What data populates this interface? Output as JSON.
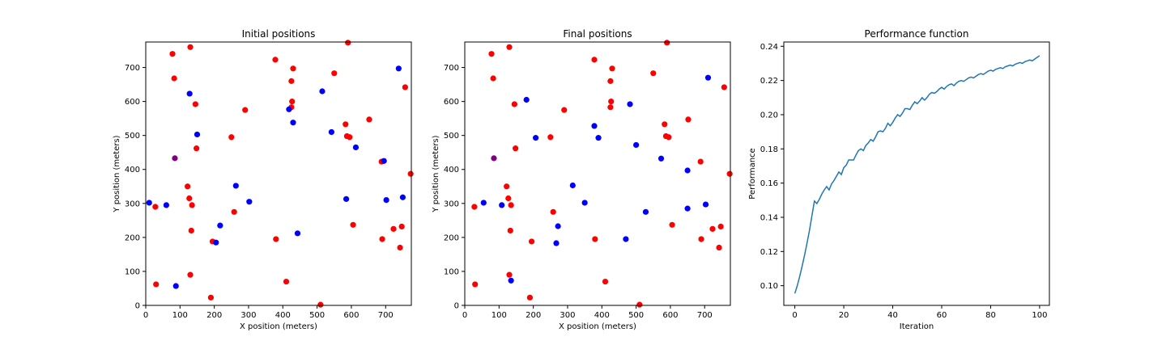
{
  "chart_data": [
    {
      "type": "scatter",
      "title": "Initial positions",
      "xlabel": "X position (meters)",
      "ylabel": "Y position (meters)",
      "xlim": [
        0,
        775
      ],
      "ylim": [
        0,
        775
      ],
      "xticks": [
        0,
        100,
        200,
        300,
        400,
        500,
        600,
        700
      ],
      "yticks": [
        0,
        100,
        200,
        300,
        400,
        500,
        600,
        700
      ],
      "colors": {
        "red": "#ff0000",
        "blue": "#0000ff",
        "purple": "#800080"
      },
      "points": {
        "red": [
          [
            78,
            740
          ],
          [
            83,
            668
          ],
          [
            130,
            760
          ],
          [
            145,
            592
          ],
          [
            148,
            462
          ],
          [
            122,
            350
          ],
          [
            127,
            315
          ],
          [
            135,
            295
          ],
          [
            133,
            220
          ],
          [
            130,
            90
          ],
          [
            28,
            290
          ],
          [
            30,
            62
          ],
          [
            190,
            23
          ],
          [
            195,
            188
          ],
          [
            250,
            495
          ],
          [
            258,
            275
          ],
          [
            290,
            575
          ],
          [
            378,
            723
          ],
          [
            380,
            195
          ],
          [
            410,
            70
          ],
          [
            430,
            697
          ],
          [
            425,
            660
          ],
          [
            427,
            600
          ],
          [
            425,
            583
          ],
          [
            510,
            2
          ],
          [
            550,
            683
          ],
          [
            583,
            533
          ],
          [
            587,
            498
          ],
          [
            595,
            495
          ],
          [
            590,
            773
          ],
          [
            605,
            237
          ],
          [
            652,
            547
          ],
          [
            688,
            423
          ],
          [
            690,
            195
          ],
          [
            723,
            225
          ],
          [
            742,
            170
          ],
          [
            747,
            232
          ],
          [
            757,
            642
          ],
          [
            773,
            387
          ]
        ],
        "blue": [
          [
            10,
            302
          ],
          [
            60,
            295
          ],
          [
            88,
            57
          ],
          [
            128,
            623
          ],
          [
            150,
            503
          ],
          [
            205,
            185
          ],
          [
            217,
            235
          ],
          [
            263,
            352
          ],
          [
            302,
            305
          ],
          [
            418,
            577
          ],
          [
            430,
            538
          ],
          [
            443,
            212
          ],
          [
            515,
            630
          ],
          [
            542,
            510
          ],
          [
            585,
            313
          ],
          [
            613,
            465
          ],
          [
            695,
            425
          ],
          [
            702,
            310
          ],
          [
            738,
            697
          ],
          [
            750,
            318
          ]
        ],
        "purple": [
          [
            85,
            433
          ]
        ]
      }
    },
    {
      "type": "scatter",
      "title": "Final positions",
      "xlabel": "X position (meters)",
      "ylabel": "Y position (meters)",
      "xlim": [
        0,
        775
      ],
      "ylim": [
        0,
        775
      ],
      "xticks": [
        0,
        100,
        200,
        300,
        400,
        500,
        600,
        700
      ],
      "yticks": [
        0,
        100,
        200,
        300,
        400,
        500,
        600,
        700
      ],
      "colors": {
        "red": "#ff0000",
        "blue": "#0000ff",
        "purple": "#800080"
      },
      "points": {
        "red": [
          [
            78,
            740
          ],
          [
            83,
            668
          ],
          [
            130,
            760
          ],
          [
            145,
            592
          ],
          [
            148,
            462
          ],
          [
            122,
            350
          ],
          [
            127,
            315
          ],
          [
            135,
            295
          ],
          [
            133,
            220
          ],
          [
            130,
            90
          ],
          [
            28,
            290
          ],
          [
            30,
            62
          ],
          [
            190,
            23
          ],
          [
            195,
            188
          ],
          [
            250,
            495
          ],
          [
            258,
            275
          ],
          [
            290,
            575
          ],
          [
            378,
            723
          ],
          [
            380,
            195
          ],
          [
            410,
            70
          ],
          [
            430,
            697
          ],
          [
            425,
            660
          ],
          [
            427,
            600
          ],
          [
            425,
            583
          ],
          [
            510,
            2
          ],
          [
            550,
            683
          ],
          [
            583,
            533
          ],
          [
            587,
            498
          ],
          [
            595,
            495
          ],
          [
            590,
            773
          ],
          [
            605,
            237
          ],
          [
            652,
            547
          ],
          [
            688,
            423
          ],
          [
            690,
            195
          ],
          [
            723,
            225
          ],
          [
            742,
            170
          ],
          [
            747,
            232
          ],
          [
            757,
            642
          ],
          [
            773,
            387
          ]
        ],
        "blue": [
          [
            55,
            302
          ],
          [
            108,
            295
          ],
          [
            135,
            73
          ],
          [
            180,
            605
          ],
          [
            207,
            493
          ],
          [
            267,
            183
          ],
          [
            272,
            233
          ],
          [
            315,
            353
          ],
          [
            350,
            302
          ],
          [
            378,
            528
          ],
          [
            390,
            493
          ],
          [
            470,
            195
          ],
          [
            482,
            592
          ],
          [
            500,
            472
          ],
          [
            528,
            275
          ],
          [
            573,
            432
          ],
          [
            650,
            397
          ],
          [
            650,
            285
          ],
          [
            703,
            297
          ],
          [
            710,
            670
          ]
        ],
        "purple": [
          [
            85,
            433
          ]
        ]
      }
    },
    {
      "type": "line",
      "title": "Performance function",
      "xlabel": "Iteration",
      "ylabel": "Performance",
      "xlim": [
        -4.5,
        104
      ],
      "ylim": [
        0.0885,
        0.2425
      ],
      "xticks": [
        0,
        20,
        40,
        60,
        80,
        100
      ],
      "yticks": [
        0.1,
        0.12,
        0.14,
        0.16,
        0.18,
        0.2,
        0.22,
        0.24
      ],
      "line_color": "#1f77b4",
      "series": [
        {
          "values": [
            0.0955,
            0.1,
            0.1055,
            0.1115,
            0.118,
            0.125,
            0.1325,
            0.141,
            0.1495,
            0.148,
            0.1505,
            0.1535,
            0.156,
            0.158,
            0.156,
            0.1595,
            0.1615,
            0.164,
            0.1665,
            0.165,
            0.169,
            0.1705,
            0.1735,
            0.1735,
            0.1735,
            0.1765,
            0.179,
            0.18,
            0.179,
            0.182,
            0.1835,
            0.1855,
            0.1845,
            0.187,
            0.19,
            0.1905,
            0.19,
            0.192,
            0.195,
            0.1935,
            0.1955,
            0.198,
            0.2,
            0.199,
            0.201,
            0.2035,
            0.2035,
            0.203,
            0.2055,
            0.2075,
            0.2065,
            0.208,
            0.21,
            0.2085,
            0.21,
            0.212,
            0.213,
            0.2125,
            0.2135,
            0.215,
            0.216,
            0.215,
            0.2165,
            0.2175,
            0.218,
            0.217,
            0.2185,
            0.2195,
            0.22,
            0.2195,
            0.2205,
            0.2215,
            0.222,
            0.2215,
            0.2225,
            0.2235,
            0.224,
            0.2235,
            0.2245,
            0.2255,
            0.226,
            0.2255,
            0.2265,
            0.227,
            0.2275,
            0.227,
            0.228,
            0.2285,
            0.229,
            0.2285,
            0.2295,
            0.23,
            0.2305,
            0.23,
            0.231,
            0.2315,
            0.232,
            0.2315,
            0.2325,
            0.2335,
            0.2345
          ]
        }
      ]
    }
  ]
}
